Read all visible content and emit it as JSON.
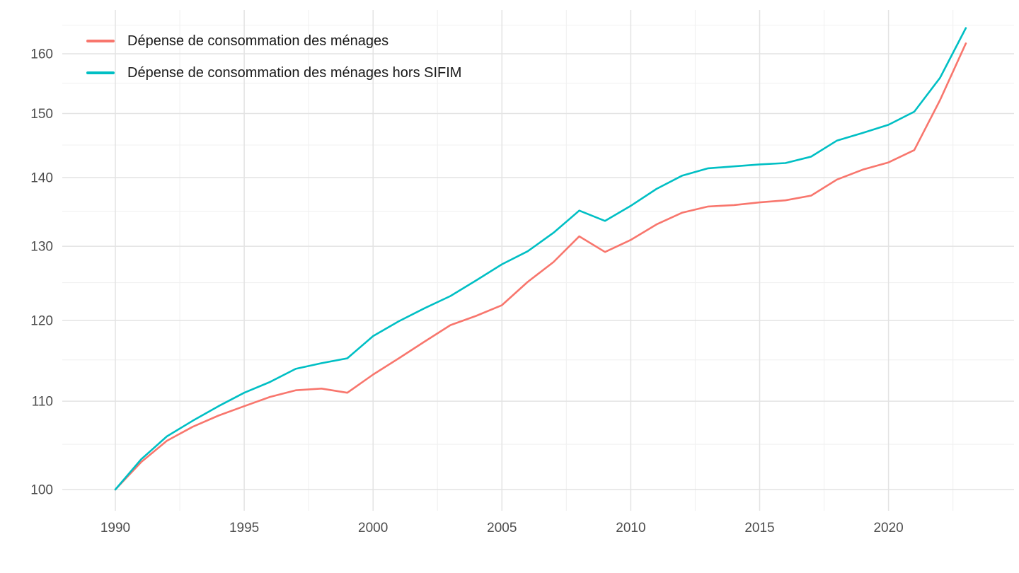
{
  "chart_data": {
    "type": "line",
    "title": "",
    "xlabel": "",
    "ylabel": "",
    "y_scale": "log10",
    "grid": true,
    "legend_position": "top-left",
    "x": [
      1990,
      1991,
      1992,
      1993,
      1994,
      1995,
      1996,
      1997,
      1998,
      1999,
      2000,
      2001,
      2002,
      2003,
      2004,
      2005,
      2006,
      2007,
      2008,
      2009,
      2010,
      2011,
      2012,
      2013,
      2014,
      2015,
      2016,
      2017,
      2018,
      2019,
      2020,
      2021,
      2022,
      2023
    ],
    "series": [
      {
        "name": "Dépense de consommation des ménages",
        "color": "#F8766D",
        "values": [
          100,
          103.0,
          105.4,
          107.0,
          108.3,
          109.4,
          110.5,
          111.3,
          111.5,
          111.0,
          113.2,
          115.2,
          117.3,
          119.4,
          120.6,
          122.0,
          125.1,
          127.8,
          131.4,
          129.2,
          130.9,
          133.1,
          134.8,
          135.7,
          135.9,
          136.3,
          136.6,
          137.3,
          139.7,
          141.2,
          142.3,
          144.2,
          152.2,
          161.8
        ]
      },
      {
        "name": "Dépense de consommation des ménages hors SIFIM",
        "color": "#00BFC4",
        "values": [
          100,
          103.3,
          105.9,
          107.7,
          109.4,
          111.0,
          112.3,
          113.9,
          114.6,
          115.2,
          118.0,
          119.9,
          121.6,
          123.2,
          125.3,
          127.5,
          129.3,
          131.9,
          135.1,
          133.6,
          135.8,
          138.3,
          140.3,
          141.4,
          141.7,
          142.0,
          142.2,
          143.2,
          145.7,
          146.9,
          148.2,
          150.3,
          155.9,
          164.5
        ]
      }
    ],
    "x_ticks": [
      1990,
      1995,
      2000,
      2005,
      2010,
      2015,
      2020
    ],
    "x_minor": [
      1992.5,
      1997.5,
      2002.5,
      2007.5,
      2012.5,
      2017.5,
      2022.5
    ],
    "y_ticks": [
      100,
      110,
      120,
      130,
      140,
      150,
      160
    ],
    "y_minor": [
      105,
      115,
      125,
      135,
      145,
      155,
      165
    ],
    "xlim": [
      1988,
      2024.9
    ],
    "ylim": [
      97.7,
      167.7
    ]
  },
  "colors": {
    "background": "#ffffff",
    "grid_major": "#e3e3e3",
    "grid_minor": "#f1f1f1",
    "tick_text": "#4d4d4d",
    "legend_text": "#1a1a1a"
  }
}
